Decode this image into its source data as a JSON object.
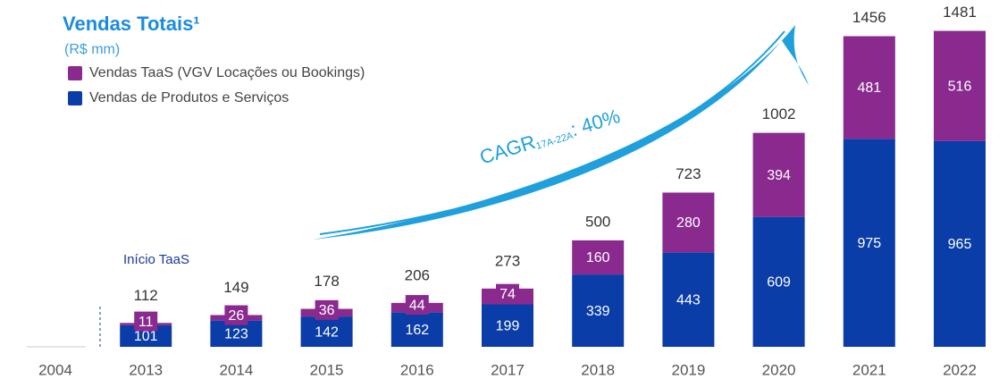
{
  "chart_data": {
    "type": "stacked-bar",
    "title": "Vendas Totais¹",
    "subtitle": "(R$ mm)",
    "annotations": {
      "start": "Início TaaS",
      "cagr": {
        "text": "CAGR",
        "subscript": "17A-22A",
        "suffix": ": 40%"
      }
    },
    "categories": [
      "2004",
      "2013",
      "2014",
      "2015",
      "2016",
      "2017",
      "2018",
      "2019",
      "2020",
      "2021",
      "2022"
    ],
    "series": [
      {
        "name": "Vendas de Produtos e Serviços",
        "color": "#0a3da8",
        "values": [
          null,
          101,
          123,
          142,
          162,
          199,
          339,
          443,
          609,
          975,
          965
        ]
      },
      {
        "name": "Vendas TaaS (VGV Locações ou Bookings)",
        "color": "#8a2a8f",
        "values": [
          null,
          11,
          26,
          36,
          44,
          74,
          160,
          280,
          394,
          481,
          516
        ]
      }
    ],
    "totals": [
      null,
      112,
      149,
      178,
      206,
      273,
      500,
      723,
      1002,
      1456,
      1481
    ],
    "ylim": [
      0,
      1500
    ]
  }
}
